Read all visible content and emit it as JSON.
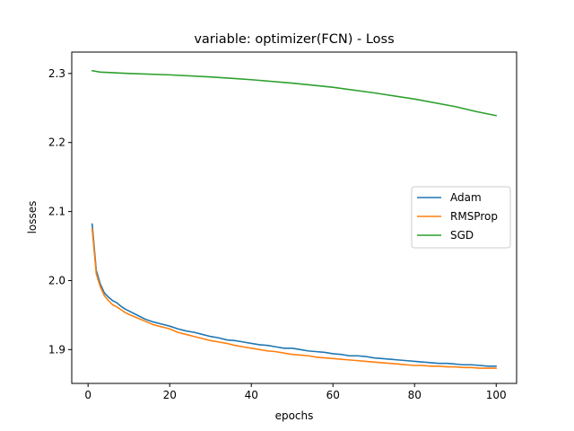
{
  "chart_data": {
    "type": "line",
    "title": "variable: optimizer(FCN) - Loss",
    "xlabel": "epochs",
    "ylabel": "losses",
    "xlim": [
      -4,
      105
    ],
    "ylim": [
      1.851,
      2.331
    ],
    "xticks": [
      0,
      20,
      40,
      60,
      80,
      100
    ],
    "yticks": [
      1.9,
      2.0,
      2.1,
      2.2,
      2.3
    ],
    "ytick_labels": [
      "1.9",
      "2.0",
      "2.1",
      "2.2",
      "2.3"
    ],
    "grid": false,
    "legend_position": "center-right",
    "series": [
      {
        "name": "Adam",
        "color": "#1f77b4",
        "x": [
          1,
          2,
          3,
          4,
          5,
          6,
          7,
          8,
          9,
          10,
          12,
          14,
          16,
          18,
          20,
          22,
          24,
          26,
          28,
          30,
          32,
          34,
          36,
          38,
          40,
          42,
          44,
          46,
          48,
          50,
          52,
          54,
          56,
          58,
          60,
          62,
          64,
          66,
          68,
          70,
          72,
          74,
          76,
          78,
          80,
          82,
          84,
          86,
          88,
          90,
          92,
          94,
          96,
          98,
          100
        ],
        "y": [
          2.082,
          2.015,
          1.995,
          1.982,
          1.976,
          1.971,
          1.968,
          1.963,
          1.959,
          1.956,
          1.95,
          1.944,
          1.94,
          1.937,
          1.934,
          1.93,
          1.927,
          1.925,
          1.922,
          1.919,
          1.917,
          1.914,
          1.913,
          1.911,
          1.909,
          1.907,
          1.906,
          1.904,
          1.902,
          1.902,
          1.9,
          1.898,
          1.897,
          1.896,
          1.894,
          1.893,
          1.891,
          1.891,
          1.89,
          1.888,
          1.887,
          1.886,
          1.885,
          1.884,
          1.883,
          1.882,
          1.881,
          1.88,
          1.88,
          1.879,
          1.878,
          1.878,
          1.877,
          1.876,
          1.876
        ]
      },
      {
        "name": "RMSProp",
        "color": "#ff7f0e",
        "x": [
          1,
          2,
          3,
          4,
          5,
          6,
          7,
          8,
          9,
          10,
          12,
          14,
          16,
          18,
          20,
          22,
          24,
          26,
          28,
          30,
          32,
          34,
          36,
          38,
          40,
          42,
          44,
          46,
          48,
          50,
          52,
          54,
          56,
          58,
          60,
          62,
          64,
          66,
          68,
          70,
          72,
          74,
          76,
          78,
          80,
          82,
          84,
          86,
          88,
          90,
          92,
          94,
          96,
          98,
          100
        ],
        "y": [
          2.075,
          2.01,
          1.991,
          1.978,
          1.971,
          1.965,
          1.962,
          1.958,
          1.954,
          1.951,
          1.946,
          1.941,
          1.936,
          1.933,
          1.93,
          1.925,
          1.922,
          1.919,
          1.916,
          1.913,
          1.911,
          1.909,
          1.906,
          1.904,
          1.902,
          1.9,
          1.898,
          1.897,
          1.895,
          1.893,
          1.892,
          1.891,
          1.889,
          1.888,
          1.887,
          1.886,
          1.885,
          1.884,
          1.883,
          1.882,
          1.881,
          1.88,
          1.879,
          1.878,
          1.877,
          1.877,
          1.876,
          1.876,
          1.875,
          1.875,
          1.874,
          1.874,
          1.873,
          1.873,
          1.873
        ]
      },
      {
        "name": "SGD",
        "color": "#2ca02c",
        "x": [
          1,
          3,
          10,
          20,
          30,
          40,
          50,
          60,
          70,
          80,
          90,
          95,
          100
        ],
        "y": [
          2.304,
          2.302,
          2.3,
          2.298,
          2.295,
          2.291,
          2.286,
          2.28,
          2.272,
          2.263,
          2.252,
          2.245,
          2.239
        ]
      }
    ]
  }
}
